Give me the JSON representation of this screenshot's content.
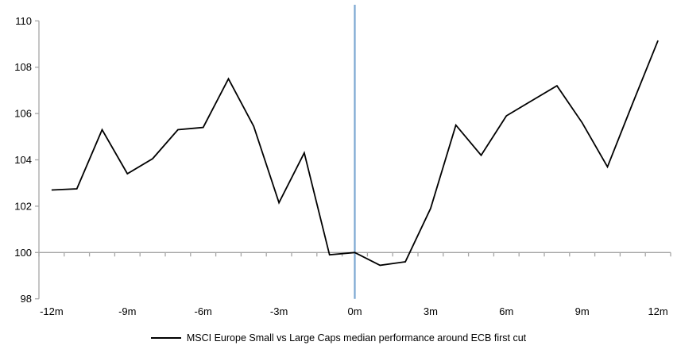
{
  "chart_data": {
    "type": "line",
    "title": "",
    "xlabel": "",
    "ylabel": "",
    "x": [
      -12,
      -11,
      -10,
      -9,
      -8,
      -7,
      -6,
      -5,
      -4,
      -3,
      -2,
      -1,
      0,
      1,
      2,
      3,
      4,
      5,
      6,
      7,
      8,
      9,
      10,
      11,
      12
    ],
    "series": [
      {
        "name": "MSCI Europe Small vs Large Caps median performance around ECB first cut",
        "values": [
          102.7,
          102.75,
          105.3,
          103.4,
          104.05,
          105.3,
          105.4,
          107.5,
          105.45,
          102.15,
          104.3,
          99.9,
          100.0,
          99.45,
          99.6,
          101.9,
          105.5,
          104.2,
          105.9,
          106.55,
          107.2,
          105.6,
          103.7,
          106.45,
          109.15
        ]
      }
    ],
    "ylim": [
      98,
      110
    ],
    "y_ticks": [
      98,
      100,
      102,
      104,
      106,
      108,
      110
    ],
    "x_tick_months": [
      -12,
      -9,
      -6,
      -3,
      0,
      3,
      6,
      9,
      12
    ],
    "x_tick_labels": [
      "-12m",
      "-9m",
      "-6m",
      "-3m",
      "0m",
      "3m",
      "6m",
      "9m",
      "12m"
    ],
    "baseline_value": 100,
    "event_line_month": 0,
    "grid": false,
    "legend_position": "bottom"
  },
  "colors": {
    "series": "#000000",
    "event_line": "#7BA7D1",
    "axis": "#A6A6A6",
    "text": "#000000",
    "background": "#FFFFFF"
  }
}
